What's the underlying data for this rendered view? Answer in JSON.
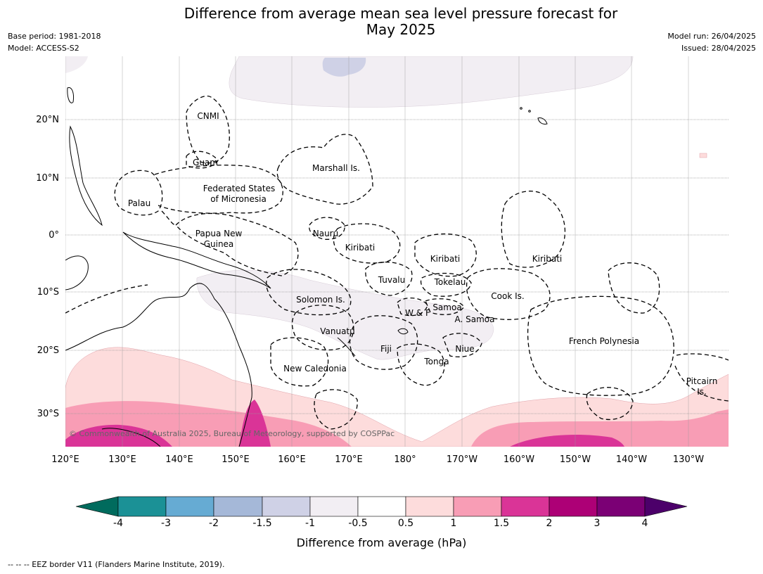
{
  "title_line1": "Difference from average mean sea level pressure forecast for",
  "title_line2": "May 2025",
  "meta_left": [
    "Base period: 1981-2018",
    "Model: ACCESS-S2"
  ],
  "meta_right": [
    "Model run: 26/04/2025",
    "Issued: 28/04/2025"
  ],
  "lat_labels": [
    "20°N",
    "10°N",
    "0°",
    "10°S",
    "20°S",
    "30°S"
  ],
  "lon_labels": [
    "120°E",
    "130°E",
    "140°E",
    "150°E",
    "160°E",
    "170°E",
    "180°",
    "170°W",
    "160°W",
    "150°W",
    "140°W",
    "130°W"
  ],
  "copyright": "© Commonwealth of Australia 2025, Bureau of Meteorology, supported by COSPPac",
  "regions": [
    "CNMI",
    "Guam",
    "Marshall Is.",
    "Federated States",
    "of Micronesia",
    "Palau",
    "Papua New",
    "Guinea",
    "Nauru",
    "Kiribati",
    "Kiribati",
    "Kiribati",
    "Tuvalu",
    "Tokelau",
    "Cook Is.",
    "Solomon Is.",
    "W & F",
    "Samoa",
    "A. Samoa",
    "Vanuatu",
    "Fiji",
    "Niue",
    "Tonga",
    "French Polynesia",
    "New Caledonia",
    "Pitcairn",
    "Is."
  ],
  "colorbar": {
    "ticks": [
      "-4",
      "-3",
      "-2",
      "-1.5",
      "-1",
      "-0.5",
      "0.5",
      "1",
      "1.5",
      "2",
      "3",
      "4"
    ],
    "colors": [
      "#006b5d",
      "#1b9196",
      "#66abd3",
      "#a5b8d8",
      "#cfd1e6",
      "#f2eef3",
      "#ffffff",
      "#fddcdc",
      "#f89db5",
      "#da3497",
      "#ad0076",
      "#7b0075",
      "#4c006a"
    ],
    "label": "Difference from average (hPa)"
  },
  "legend_note": "--  --  -- EEZ border V11 (Flanders Marine Institute, 2019)."
}
